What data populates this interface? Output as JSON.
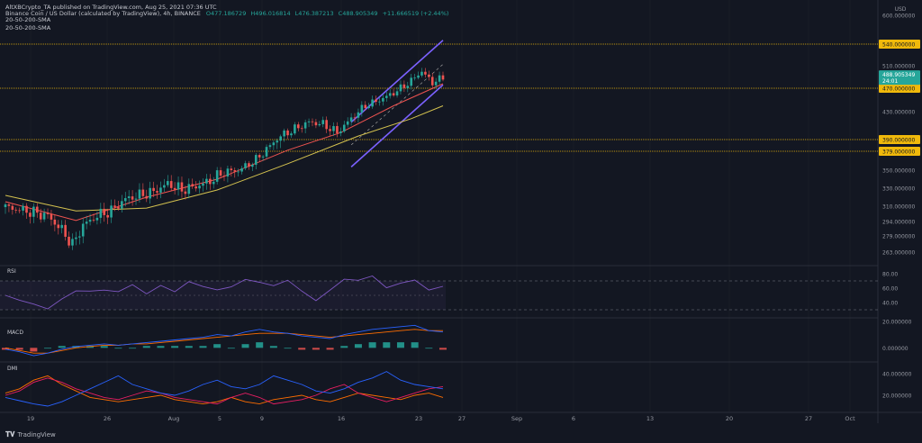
{
  "header": {
    "publisher_line": "AltXBCrypto_TA published on TradingView.com, Aug 25, 2021 07:36 UTC",
    "symbol": "Binance Coin / US Dollar (calculated by TradingView), 4h, BINANCE",
    "open": "O477.186729",
    "high": "H496.016814",
    "low": "L476.387213",
    "close": "C488.905349",
    "change": "+11.666519 (+2.44%)",
    "sma_line_1": "20-50-200-SMA",
    "sma_line_2": "20-50-200-SMA"
  },
  "footer": {
    "brand": "TradingView"
  },
  "colors": {
    "background": "#131722",
    "up": "#26a69a",
    "down": "#ef5350",
    "sma20": "#ef5350",
    "sma50": "#d4c24f",
    "channel": "#7b61ff",
    "level_line": "#f0b90b",
    "rsi": "#7e57c2",
    "macd": "#2962ff",
    "signal": "#ff6d00",
    "adx_plus": "#2962ff",
    "adx_minus": "#e91e63",
    "adx": "#ff6d00"
  },
  "chart_data": {
    "type": "candlestick",
    "title": "Binance Coin / US Dollar, 4h",
    "x_ticks": [
      "19",
      "26",
      "Aug",
      "5",
      "9",
      "16",
      "23",
      "27",
      "Sep",
      "6",
      "13",
      "20",
      "27",
      "Oct"
    ],
    "price_axis": {
      "currency": "USD",
      "ticks": [
        600,
        540,
        510,
        470,
        430,
        390,
        379,
        350,
        330,
        310,
        294,
        279,
        263
      ],
      "tick_labels": [
        "600.000000",
        "540.000000",
        "510.000000",
        "470.000000",
        "430.000000",
        "390.000000",
        "379.000000",
        "350.000000",
        "330.000000",
        "310.000000",
        "294.000000",
        "279.000000",
        "263.000000"
      ],
      "last_price": "488.905349",
      "countdown": "24:01",
      "ylim": [
        250,
        600
      ]
    },
    "horizontal_levels": [
      {
        "value": 540,
        "label": "540.000000"
      },
      {
        "value": 470,
        "label": "470.000000"
      },
      {
        "value": 390,
        "label": "390.000000"
      },
      {
        "value": 379,
        "label": "379.000000"
      }
    ],
    "ohlc_close_path": [
      {
        "x": 0,
        "close": 309
      },
      {
        "x": 6,
        "close": 305
      },
      {
        "x": 12,
        "close": 300
      },
      {
        "x": 16,
        "close": 285
      },
      {
        "x": 19,
        "close": 270
      },
      {
        "x": 22,
        "close": 290
      },
      {
        "x": 26,
        "close": 300
      },
      {
        "x": 30,
        "close": 305
      },
      {
        "x": 34,
        "close": 318
      },
      {
        "x": 38,
        "close": 322
      },
      {
        "x": 42,
        "close": 326
      },
      {
        "x": 46,
        "close": 335
      },
      {
        "x": 50,
        "close": 328
      },
      {
        "x": 54,
        "close": 332
      },
      {
        "x": 58,
        "close": 338
      },
      {
        "x": 62,
        "close": 348
      },
      {
        "x": 66,
        "close": 350
      },
      {
        "x": 70,
        "close": 362
      },
      {
        "x": 74,
        "close": 380
      },
      {
        "x": 78,
        "close": 395
      },
      {
        "x": 82,
        "close": 405
      },
      {
        "x": 86,
        "close": 415
      },
      {
        "x": 90,
        "close": 412
      },
      {
        "x": 94,
        "close": 400
      },
      {
        "x": 98,
        "close": 420
      },
      {
        "x": 102,
        "close": 440
      },
      {
        "x": 106,
        "close": 450
      },
      {
        "x": 110,
        "close": 462
      },
      {
        "x": 114,
        "close": 478
      },
      {
        "x": 118,
        "close": 500
      },
      {
        "x": 121,
        "close": 480
      },
      {
        "x": 124,
        "close": 489
      }
    ],
    "sma20_path": [
      {
        "x": 0,
        "v": 315
      },
      {
        "x": 20,
        "v": 295
      },
      {
        "x": 40,
        "v": 320
      },
      {
        "x": 60,
        "v": 340
      },
      {
        "x": 80,
        "v": 380
      },
      {
        "x": 95,
        "v": 400
      },
      {
        "x": 110,
        "v": 440
      },
      {
        "x": 124,
        "v": 478
      }
    ],
    "sma50_path": [
      {
        "x": 0,
        "v": 322
      },
      {
        "x": 20,
        "v": 305
      },
      {
        "x": 40,
        "v": 308
      },
      {
        "x": 60,
        "v": 328
      },
      {
        "x": 80,
        "v": 360
      },
      {
        "x": 100,
        "v": 395
      },
      {
        "x": 115,
        "v": 420
      },
      {
        "x": 124,
        "v": 440
      }
    ],
    "rsi": {
      "label": "RSI",
      "ticks": [
        80,
        60,
        40
      ],
      "tick_labels": [
        "80.00",
        "60.00",
        "40.00"
      ],
      "bands": [
        70,
        30
      ],
      "values": [
        50,
        46,
        40,
        30,
        42,
        55,
        58,
        60,
        55,
        62,
        50,
        65,
        58,
        70,
        60,
        55,
        62,
        75,
        70,
        62,
        68,
        55,
        45,
        60,
        72,
        68,
        75,
        62,
        70,
        72,
        55,
        60
      ]
    },
    "macd": {
      "label": "MACD",
      "ticks": [
        20,
        0
      ],
      "tick_labels": [
        "20.000000",
        "0.000000"
      ],
      "macd": [
        -1,
        -3,
        -6,
        -4,
        -1,
        1,
        2,
        3,
        2,
        3,
        4,
        5,
        6,
        7,
        8,
        10,
        9,
        12,
        14,
        12,
        11,
        9,
        8,
        7,
        10,
        12,
        14,
        15,
        16,
        17,
        13,
        12
      ],
      "signal": [
        0,
        -2,
        -4,
        -4,
        -2,
        0,
        1,
        2,
        2,
        3,
        3,
        4,
        5,
        6,
        7,
        8,
        9,
        10,
        11,
        11,
        11,
        10,
        9,
        8,
        9,
        10,
        11,
        12,
        13,
        14,
        13,
        13
      ]
    },
    "dmi": {
      "label": "DMI",
      "ticks": [
        40,
        20
      ],
      "tick_labels": [
        "40.000000",
        "20.000000"
      ],
      "plus_di": [
        18,
        15,
        12,
        10,
        14,
        20,
        26,
        32,
        38,
        30,
        26,
        22,
        20,
        24,
        30,
        34,
        28,
        26,
        30,
        38,
        34,
        30,
        24,
        22,
        26,
        32,
        36,
        42,
        34,
        30,
        28,
        26
      ],
      "minus_di": [
        20,
        24,
        32,
        36,
        32,
        26,
        22,
        18,
        16,
        20,
        24,
        22,
        18,
        16,
        14,
        12,
        18,
        22,
        18,
        12,
        14,
        16,
        20,
        26,
        30,
        22,
        18,
        14,
        18,
        22,
        26,
        28
      ],
      "adx": [
        22,
        26,
        34,
        38,
        30,
        24,
        18,
        16,
        14,
        16,
        18,
        20,
        16,
        14,
        12,
        14,
        18,
        14,
        12,
        16,
        18,
        20,
        16,
        14,
        18,
        22,
        20,
        18,
        16,
        20,
        22,
        18
      ]
    }
  }
}
